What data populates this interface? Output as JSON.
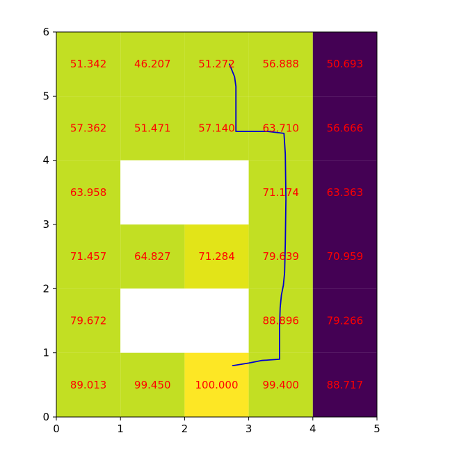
{
  "chart_data": {
    "type": "heatmap",
    "title": "",
    "xlabel": "",
    "ylabel": "",
    "xlim": [
      0,
      5
    ],
    "ylim": [
      0,
      6
    ],
    "x_ticks": [
      "0",
      "1",
      "2",
      "3",
      "4",
      "5"
    ],
    "y_ticks": [
      "0",
      "1",
      "2",
      "3",
      "4",
      "5",
      "6"
    ],
    "grid": false,
    "colormap": "viridis",
    "rows_top_to_bottom": [
      [
        {
          "label": "51.342",
          "fill": "#c2df23"
        },
        {
          "label": "46.207",
          "fill": "#c2df23"
        },
        {
          "label": "51.272",
          "fill": "#c2df23"
        },
        {
          "label": "56.888",
          "fill": "#c2df23"
        },
        {
          "label": "50.693",
          "fill": "#440154"
        }
      ],
      [
        {
          "label": "57.362",
          "fill": "#c2df23"
        },
        {
          "label": "51.471",
          "fill": "#c2df23"
        },
        {
          "label": "57.140",
          "fill": "#c2df23"
        },
        {
          "label": "63.710",
          "fill": "#c2df23"
        },
        {
          "label": "56.666",
          "fill": "#440154"
        }
      ],
      [
        {
          "label": "63.958",
          "fill": "#c2df23"
        },
        {
          "label": "",
          "fill": "#ffffff"
        },
        {
          "label": "",
          "fill": "#ffffff"
        },
        {
          "label": "71.174",
          "fill": "#c2df23"
        },
        {
          "label": "63.363",
          "fill": "#440154"
        }
      ],
      [
        {
          "label": "71.457",
          "fill": "#c2df23"
        },
        {
          "label": "64.827",
          "fill": "#c2df23"
        },
        {
          "label": "71.284",
          "fill": "#e2e418"
        },
        {
          "label": "79.639",
          "fill": "#c2df23"
        },
        {
          "label": "70.959",
          "fill": "#440154"
        }
      ],
      [
        {
          "label": "79.672",
          "fill": "#c2df23"
        },
        {
          "label": "",
          "fill": "#ffffff"
        },
        {
          "label": "",
          "fill": "#ffffff"
        },
        {
          "label": "88.896",
          "fill": "#c2df23"
        },
        {
          "label": "79.266",
          "fill": "#440154"
        }
      ],
      [
        {
          "label": "89.013",
          "fill": "#c2df23"
        },
        {
          "label": "99.450",
          "fill": "#c2df23"
        },
        {
          "label": "100.000",
          "fill": "#fde725"
        },
        {
          "label": "99.400",
          "fill": "#c2df23"
        },
        {
          "label": "88.717",
          "fill": "#440154"
        }
      ]
    ],
    "label_color": "#ff0000",
    "path": {
      "color": "#0000cc",
      "points": [
        [
          2.7,
          5.5
        ],
        [
          2.78,
          5.3
        ],
        [
          2.8,
          5.15
        ],
        [
          2.8,
          4.45
        ],
        [
          3.3,
          4.45
        ],
        [
          3.55,
          4.42
        ],
        [
          3.57,
          4.1
        ],
        [
          3.58,
          3.4
        ],
        [
          3.57,
          2.7
        ],
        [
          3.56,
          2.25
        ],
        [
          3.54,
          2.05
        ],
        [
          3.51,
          1.9
        ],
        [
          3.49,
          1.7
        ],
        [
          3.48,
          1.4
        ],
        [
          3.48,
          0.9
        ],
        [
          3.2,
          0.88
        ],
        [
          3.0,
          0.84
        ],
        [
          2.75,
          0.8
        ]
      ]
    }
  }
}
